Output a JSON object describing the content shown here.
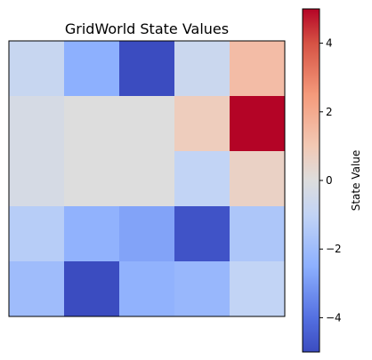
{
  "chart_data": {
    "type": "heatmap",
    "title": "GridWorld State Values",
    "xlabel": "",
    "ylabel": "",
    "grid": false,
    "rows": 5,
    "cols": 5,
    "values": [
      [
        -0.8,
        -2.5,
        -5.0,
        -0.7,
        1.4
      ],
      [
        -0.3,
        0.0,
        0.0,
        0.8,
        5.0
      ],
      [
        -0.3,
        0.0,
        0.0,
        -1.0,
        0.6
      ],
      [
        -1.3,
        -2.4,
        -2.8,
        -4.8,
        -1.6
      ],
      [
        -2.0,
        -5.0,
        -2.4,
        -2.2,
        -1.0
      ]
    ],
    "colormap": "coolwarm",
    "colorbar": {
      "label": "State Value",
      "vmin": -5.0,
      "vmax": 5.0,
      "ticks": [
        -4,
        -2,
        0,
        2,
        4
      ],
      "tick_labels": [
        "−4",
        "−2",
        "0",
        "2",
        "4"
      ]
    }
  }
}
